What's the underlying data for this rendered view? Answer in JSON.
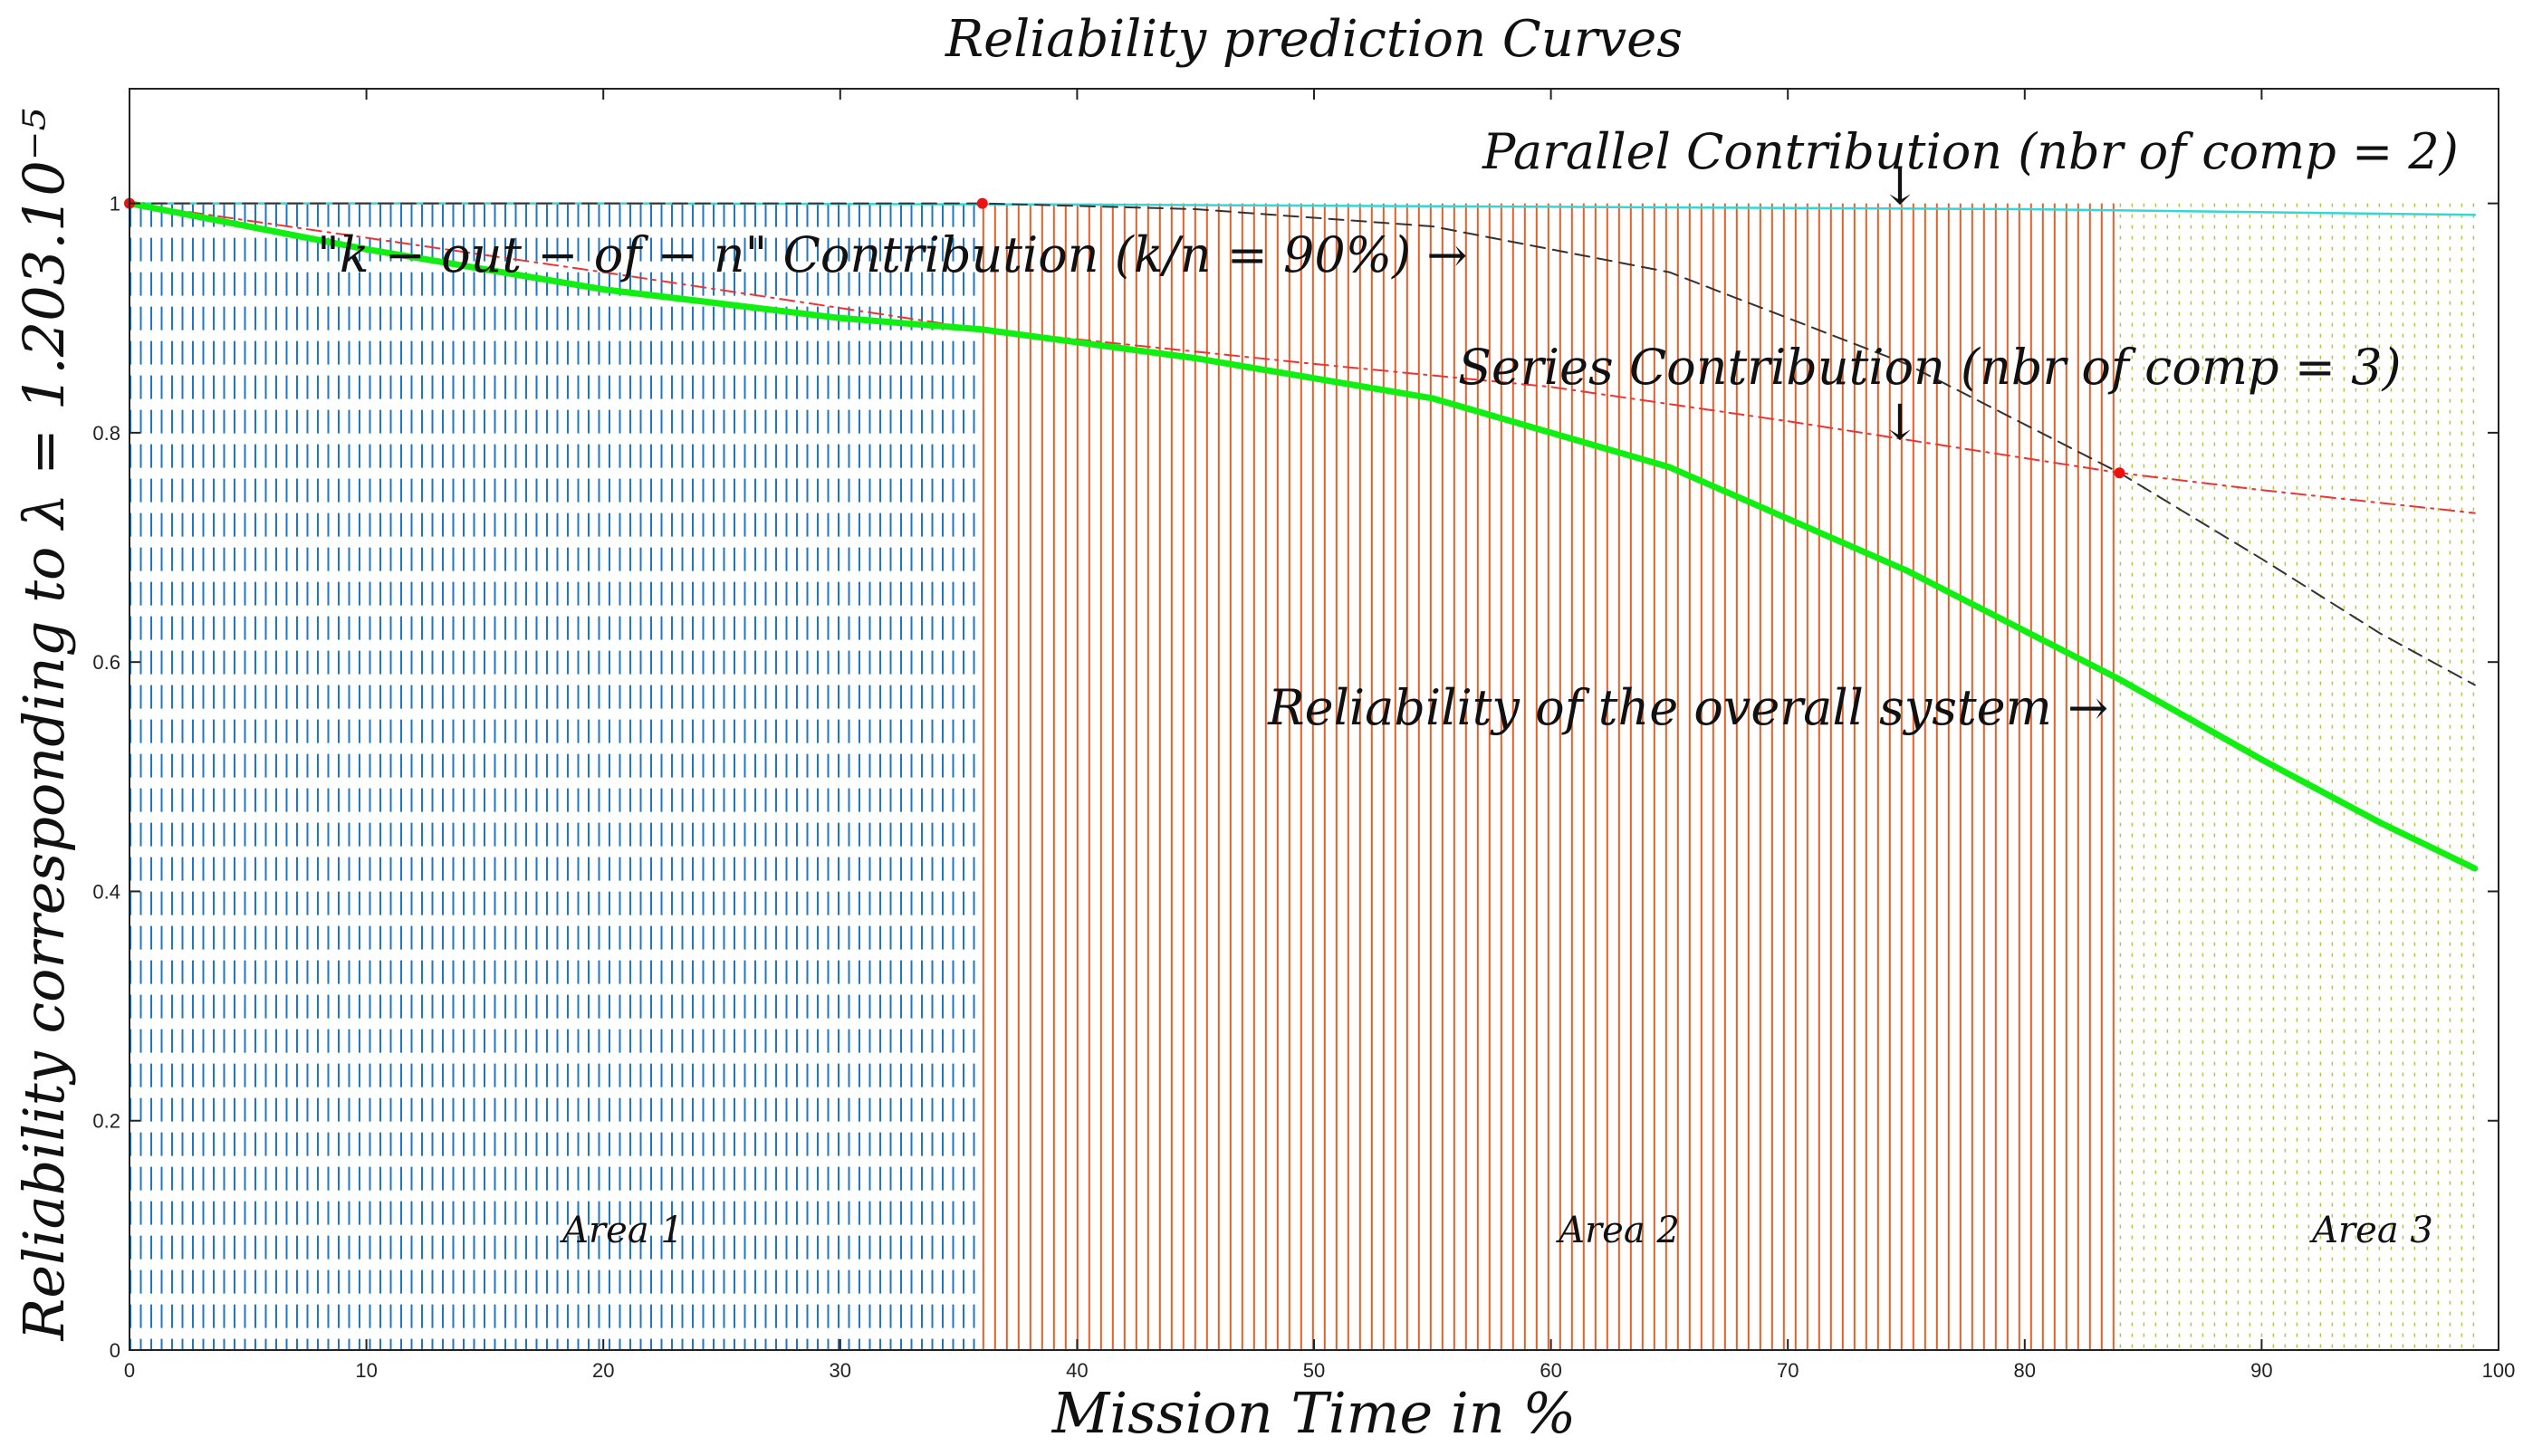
{
  "chart_data": {
    "type": "line",
    "title": "Reliability prediction Curves",
    "xlabel": "Mission Time in %",
    "ylabel": "Reliability corresponding to λ = 1.203.10⁻⁵",
    "xlim": [
      0,
      100
    ],
    "ylim": [
      0,
      1.1
    ],
    "x_ticks": [
      0,
      10,
      20,
      30,
      40,
      50,
      60,
      70,
      80,
      90,
      100
    ],
    "y_ticks": [
      0,
      0.2,
      0.4,
      0.6,
      0.8,
      1
    ],
    "grid": false,
    "areas": [
      {
        "name": "Area 1",
        "x_start": 0,
        "x_end": 36,
        "color": "#1f77c4",
        "pattern": "dashed"
      },
      {
        "name": "Area 2",
        "x_start": 36,
        "x_end": 84,
        "color": "#e0602a",
        "pattern": "solid"
      },
      {
        "name": "Area 3",
        "x_start": 84,
        "x_end": 99,
        "color": "#b8c43a",
        "pattern": "dotted"
      }
    ],
    "series": [
      {
        "name": "Parallel Contribution",
        "color": "#35d6d6",
        "style": "solid",
        "x": [
          0,
          20,
          40,
          60,
          80,
          99
        ],
        "y": [
          1.0,
          1.0,
          0.999,
          0.997,
          0.995,
          0.99
        ]
      },
      {
        "name": "k-out-of-n Contribution",
        "color": "#333333",
        "style": "dashed",
        "x": [
          0,
          36,
          45,
          55,
          65,
          75,
          84,
          90,
          95,
          99
        ],
        "y": [
          1.0,
          1.0,
          0.995,
          0.98,
          0.94,
          0.86,
          0.765,
          0.69,
          0.625,
          0.58
        ]
      },
      {
        "name": "Series Contribution",
        "color": "#ee3333",
        "style": "dashdot",
        "x": [
          0,
          20,
          36,
          50,
          60,
          70,
          84,
          90,
          99
        ],
        "y": [
          1.0,
          0.94,
          0.89,
          0.86,
          0.84,
          0.81,
          0.765,
          0.75,
          0.73
        ]
      },
      {
        "name": "Reliability of the overall system",
        "color": "#11ee11",
        "style": "solid",
        "x": [
          0,
          10,
          20,
          30,
          36,
          45,
          55,
          65,
          75,
          84,
          90,
          95,
          99
        ],
        "y": [
          1.0,
          0.96,
          0.925,
          0.9,
          0.89,
          0.865,
          0.83,
          0.77,
          0.68,
          0.585,
          0.515,
          0.46,
          0.42
        ]
      }
    ],
    "markers": [
      {
        "x": 0,
        "y": 1.0,
        "color": "#ee1111"
      },
      {
        "x": 36,
        "y": 1.0,
        "color": "#ee1111"
      },
      {
        "x": 84,
        "y": 0.765,
        "color": "#ee1111"
      }
    ],
    "annotations": [
      {
        "text": "Parallel Contribution (nbr of comp = 2)",
        "arrow": "↓"
      },
      {
        "text": "\"k − out − of − n\" Contribution (k/n = 90%) →"
      },
      {
        "text": "Series Contribution (nbr of comp = 3)",
        "arrow": "↓"
      },
      {
        "text": "Reliability of the overall system →"
      }
    ]
  }
}
